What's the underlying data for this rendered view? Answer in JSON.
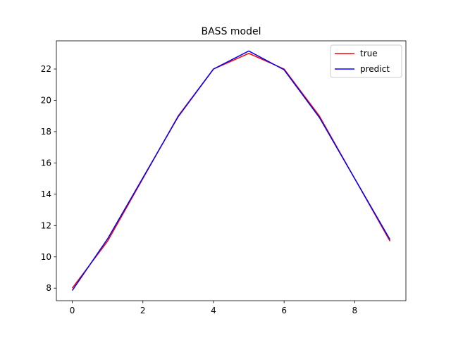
{
  "chart_data": {
    "type": "line",
    "title": "BASS model",
    "xlabel": "",
    "ylabel": "",
    "xlim": [
      -0.45,
      9.45
    ],
    "ylim": [
      7.2,
      23.8
    ],
    "xticks": [
      0,
      2,
      4,
      6,
      8
    ],
    "yticks": [
      8,
      10,
      12,
      14,
      16,
      18,
      20,
      22
    ],
    "grid": false,
    "legend_position": "top-right",
    "x": [
      0,
      1,
      2,
      3,
      4,
      5,
      6,
      7,
      8,
      9
    ],
    "series": [
      {
        "name": "true",
        "color": "#ff0000",
        "values": [
          8,
          11,
          15,
          19,
          22,
          23,
          22,
          19,
          15,
          11
        ]
      },
      {
        "name": "predict",
        "color": "#0000ff",
        "values": [
          7.85,
          11.15,
          15.05,
          18.95,
          22.0,
          23.15,
          21.95,
          18.9,
          15.0,
          11.1
        ]
      }
    ]
  }
}
